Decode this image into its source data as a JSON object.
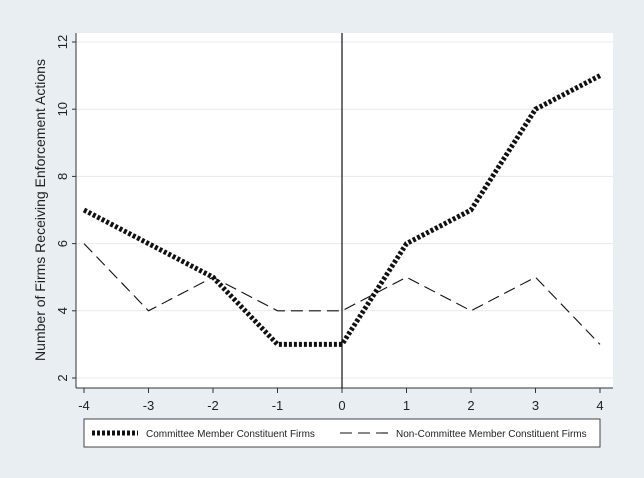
{
  "colors": {
    "outer_background": "#e9eef3",
    "plot_background": "#ffffff",
    "grid": "#e4eaef",
    "line": "#111111"
  },
  "chart_data": {
    "type": "line",
    "title": "",
    "xlabel": "",
    "ylabel": "Number of Firms Receiving Enforcement Actions",
    "x": [
      -4,
      -3,
      -2,
      -1,
      0,
      1,
      2,
      3,
      4
    ],
    "xlim": [
      -4,
      4
    ],
    "ylim": [
      2,
      12
    ],
    "xticks": [
      "-4",
      "-3",
      "-2",
      "-1",
      "0",
      "1",
      "2",
      "3",
      "4"
    ],
    "yticks": [
      "2",
      "4",
      "6",
      "8",
      "10",
      "12"
    ],
    "ytick_orientation": "vertical",
    "grid": true,
    "reference_line_x": 0,
    "legend_position": "bottom",
    "series": [
      {
        "name": "Committee Member Constituent Firms",
        "style": "dotted-thick",
        "values": [
          7,
          6,
          5,
          3,
          3,
          6,
          7,
          10,
          11
        ]
      },
      {
        "name": "Non-Committee Member Constituent Firms",
        "style": "dashed-thin",
        "values": [
          6,
          4,
          5,
          4,
          4,
          5,
          4,
          5,
          3
        ]
      }
    ]
  }
}
